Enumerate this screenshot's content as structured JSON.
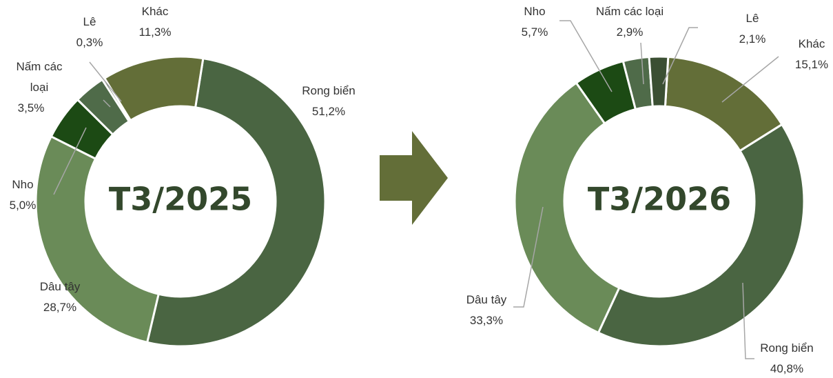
{
  "chart_data": [
    {
      "type": "donut",
      "title": "T3/2025",
      "categories": [
        "Rong biển",
        "Dâu tây",
        "Nho",
        "Nấm các loại",
        "Lê",
        "Khác"
      ],
      "values": [
        51.2,
        28.7,
        5.0,
        3.5,
        0.3,
        11.3
      ],
      "value_labels": [
        "51,2%",
        "28,7%",
        "5,0%",
        "3,5%",
        "0,3%",
        "11,3%"
      ],
      "colors": [
        "#4a6542",
        "#6a8b58",
        "#1c4a14",
        "#4f6b49",
        "#3b4f33",
        "#636e38"
      ]
    },
    {
      "type": "donut",
      "title": "T3/2026",
      "categories": [
        "Khác",
        "Rong biển",
        "Dâu tây",
        "Nho",
        "Nấm các loại",
        "Lê"
      ],
      "values": [
        15.1,
        40.8,
        33.3,
        5.7,
        2.9,
        2.1
      ],
      "value_labels": [
        "15,1%",
        "40,8%",
        "33,3%",
        "5,7%",
        "2,9%",
        "2,1%"
      ],
      "colors": [
        "#636e38",
        "#4a6542",
        "#6a8b58",
        "#1c4a14",
        "#4f6b49",
        "#3b4f33"
      ]
    }
  ]
}
